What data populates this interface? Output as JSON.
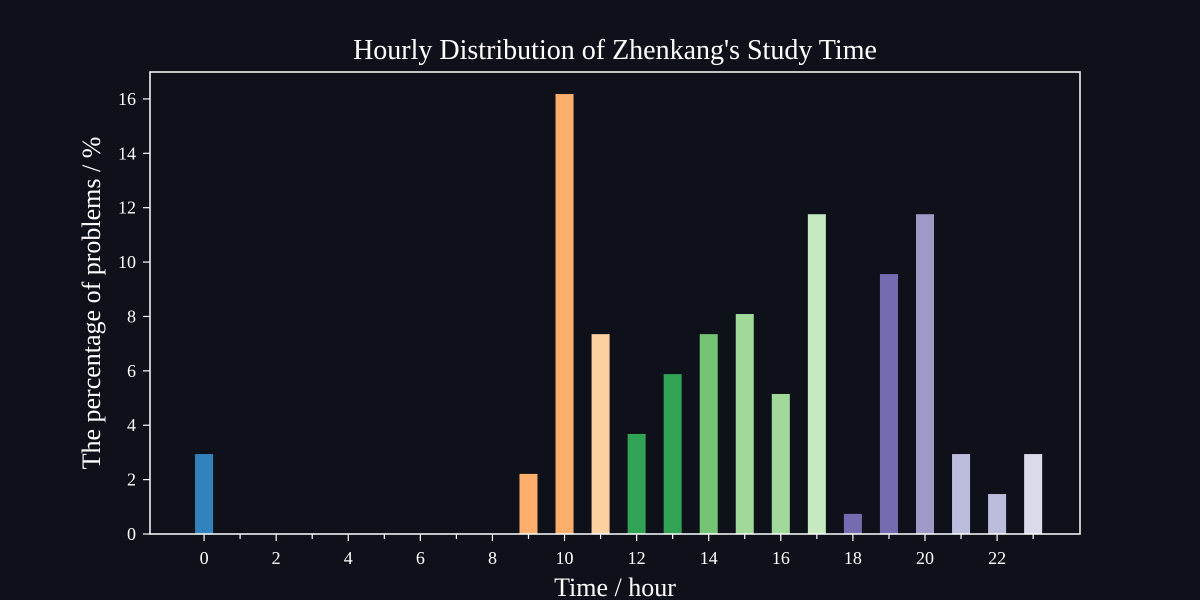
{
  "chart_data": {
    "type": "bar",
    "title": "Hourly Distribution of Zhenkang's Study Time",
    "xlabel": "Time / hour",
    "ylabel": "The percentage of problems / %",
    "x": [
      0,
      1,
      2,
      3,
      4,
      5,
      6,
      7,
      8,
      9,
      10,
      11,
      12,
      13,
      14,
      15,
      16,
      17,
      18,
      19,
      20,
      21,
      22,
      23
    ],
    "values": [
      2.94,
      0,
      0,
      0,
      0,
      0,
      0,
      0,
      0,
      2.21,
      16.18,
      7.35,
      3.68,
      5.88,
      7.35,
      8.09,
      5.15,
      11.76,
      0.74,
      9.56,
      11.76,
      2.94,
      1.47,
      2.94
    ],
    "colors": [
      "#3182bd",
      "#6baed6",
      "#9ecae1",
      "#c6dbef",
      "#e6550d",
      "#fd8d3c",
      "#fdae6b",
      "#fdd0a2",
      "#e6550d",
      "#fdae6b",
      "#fdae6b",
      "#fdd0a2",
      "#31a354",
      "#31a354",
      "#74c476",
      "#a1d99b",
      "#a1d99b",
      "#c7e9c0",
      "#756bb1",
      "#756bb1",
      "#9e9ac8",
      "#bcbddc",
      "#bcbddc",
      "#dadaeb"
    ],
    "xticks": [
      0,
      2,
      4,
      6,
      8,
      10,
      12,
      14,
      16,
      18,
      20,
      22
    ],
    "minor_xticks": [
      1,
      3,
      5,
      7,
      9,
      11,
      13,
      15,
      17,
      19,
      21,
      23
    ],
    "yticks": [
      0,
      2,
      4,
      6,
      8,
      10,
      12,
      14,
      16
    ],
    "xlim": [
      -1.5,
      24.3
    ],
    "ylim": [
      0,
      16.99
    ],
    "grid": false,
    "background_color": "#0e111a",
    "axis_color": "#ffffff"
  }
}
